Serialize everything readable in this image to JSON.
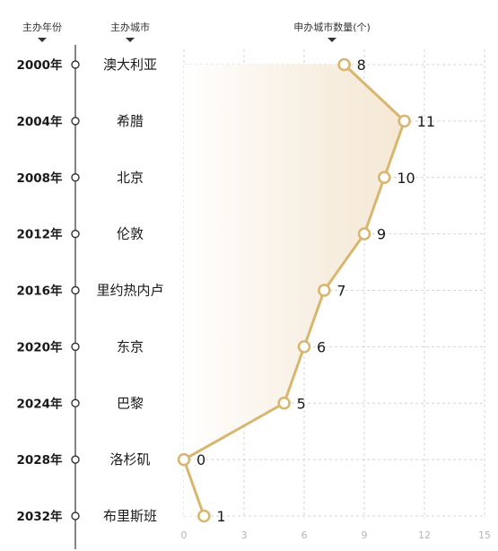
{
  "headers": {
    "year": "主办年份",
    "city": "主办城市",
    "count": "申办城市数量(个)"
  },
  "colors": {
    "line": "#d9b66f",
    "marker_fill": "#ffffff",
    "area_top": "#f6ead7",
    "axis": "#333333",
    "grid": "#d4d4d4",
    "tick": "#b5b5b5"
  },
  "chart_data": {
    "type": "line",
    "orientation": "vertical-categories",
    "categories": [
      "2000年",
      "2004年",
      "2008年",
      "2012年",
      "2016年",
      "2020年",
      "2024年",
      "2028年",
      "2032年"
    ],
    "cities": [
      "澳大利亚",
      "希腊",
      "北京",
      "伦敦",
      "里约热内卢",
      "东京",
      "巴黎",
      "洛杉矶",
      "布里斯班"
    ],
    "values": [
      8,
      11,
      10,
      9,
      7,
      6,
      5,
      0,
      1
    ],
    "value_labels": [
      "8",
      "11",
      "10",
      "9",
      "7",
      "6",
      "5",
      "0",
      "1"
    ],
    "xlim": [
      0,
      15
    ],
    "xticks": [
      "0",
      "3",
      "6",
      "9",
      "12",
      "15"
    ],
    "xlabel": "申办城市数量(个)",
    "grid": true,
    "area_fill": true
  }
}
